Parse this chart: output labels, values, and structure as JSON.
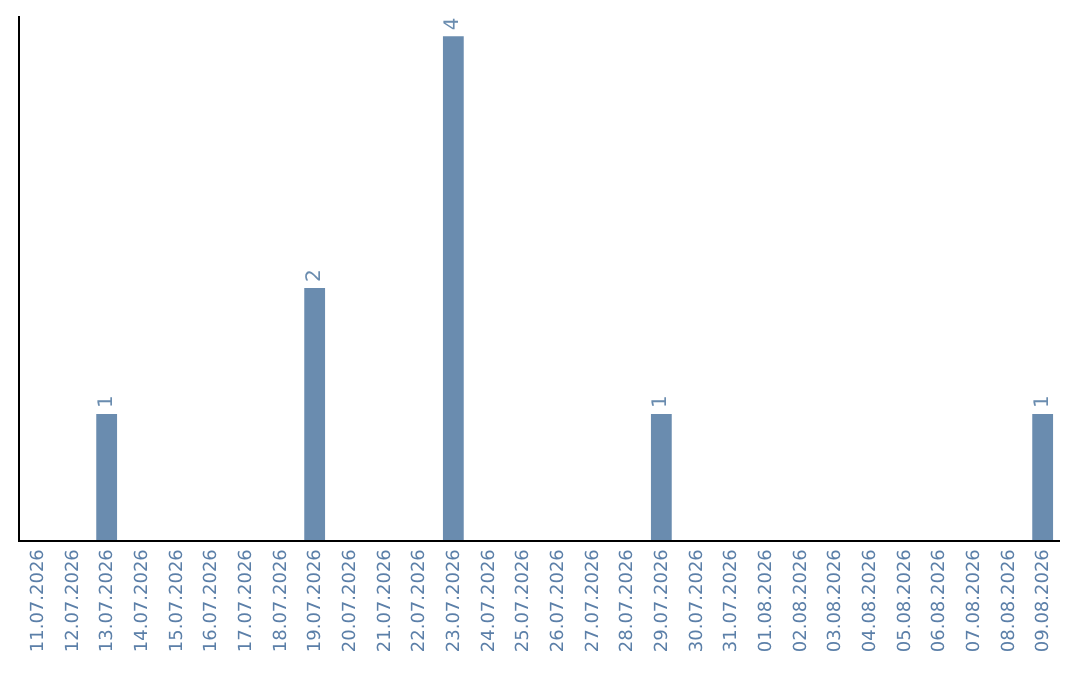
{
  "chart_data": {
    "type": "bar",
    "categories": [
      "11.07.2026",
      "12.07.2026",
      "13.07.2026",
      "14.07.2026",
      "15.07.2026",
      "16.07.2026",
      "17.07.2026",
      "18.07.2026",
      "19.07.2026",
      "20.07.2026",
      "21.07.2026",
      "22.07.2026",
      "23.07.2026",
      "24.07.2026",
      "25.07.2026",
      "26.07.2026",
      "27.07.2026",
      "28.07.2026",
      "29.07.2026",
      "30.07.2026",
      "31.07.2026",
      "01.08.2026",
      "02.08.2026",
      "03.08.2026",
      "04.08.2026",
      "05.08.2026",
      "06.08.2026",
      "07.08.2026",
      "08.08.2026",
      "09.08.2026"
    ],
    "values": [
      0,
      0,
      1,
      0,
      0,
      0,
      0,
      0,
      2,
      0,
      0,
      0,
      4,
      0,
      0,
      0,
      0,
      0,
      1,
      0,
      0,
      0,
      0,
      0,
      0,
      0,
      0,
      0,
      0,
      1
    ],
    "value_labels": [
      null,
      null,
      "1",
      null,
      null,
      null,
      null,
      null,
      "2",
      null,
      null,
      null,
      "4",
      null,
      null,
      null,
      null,
      null,
      "1",
      null,
      null,
      null,
      null,
      null,
      null,
      null,
      null,
      null,
      null,
      "1"
    ],
    "color": "#6a8caf",
    "tick_labels": "x"
  }
}
